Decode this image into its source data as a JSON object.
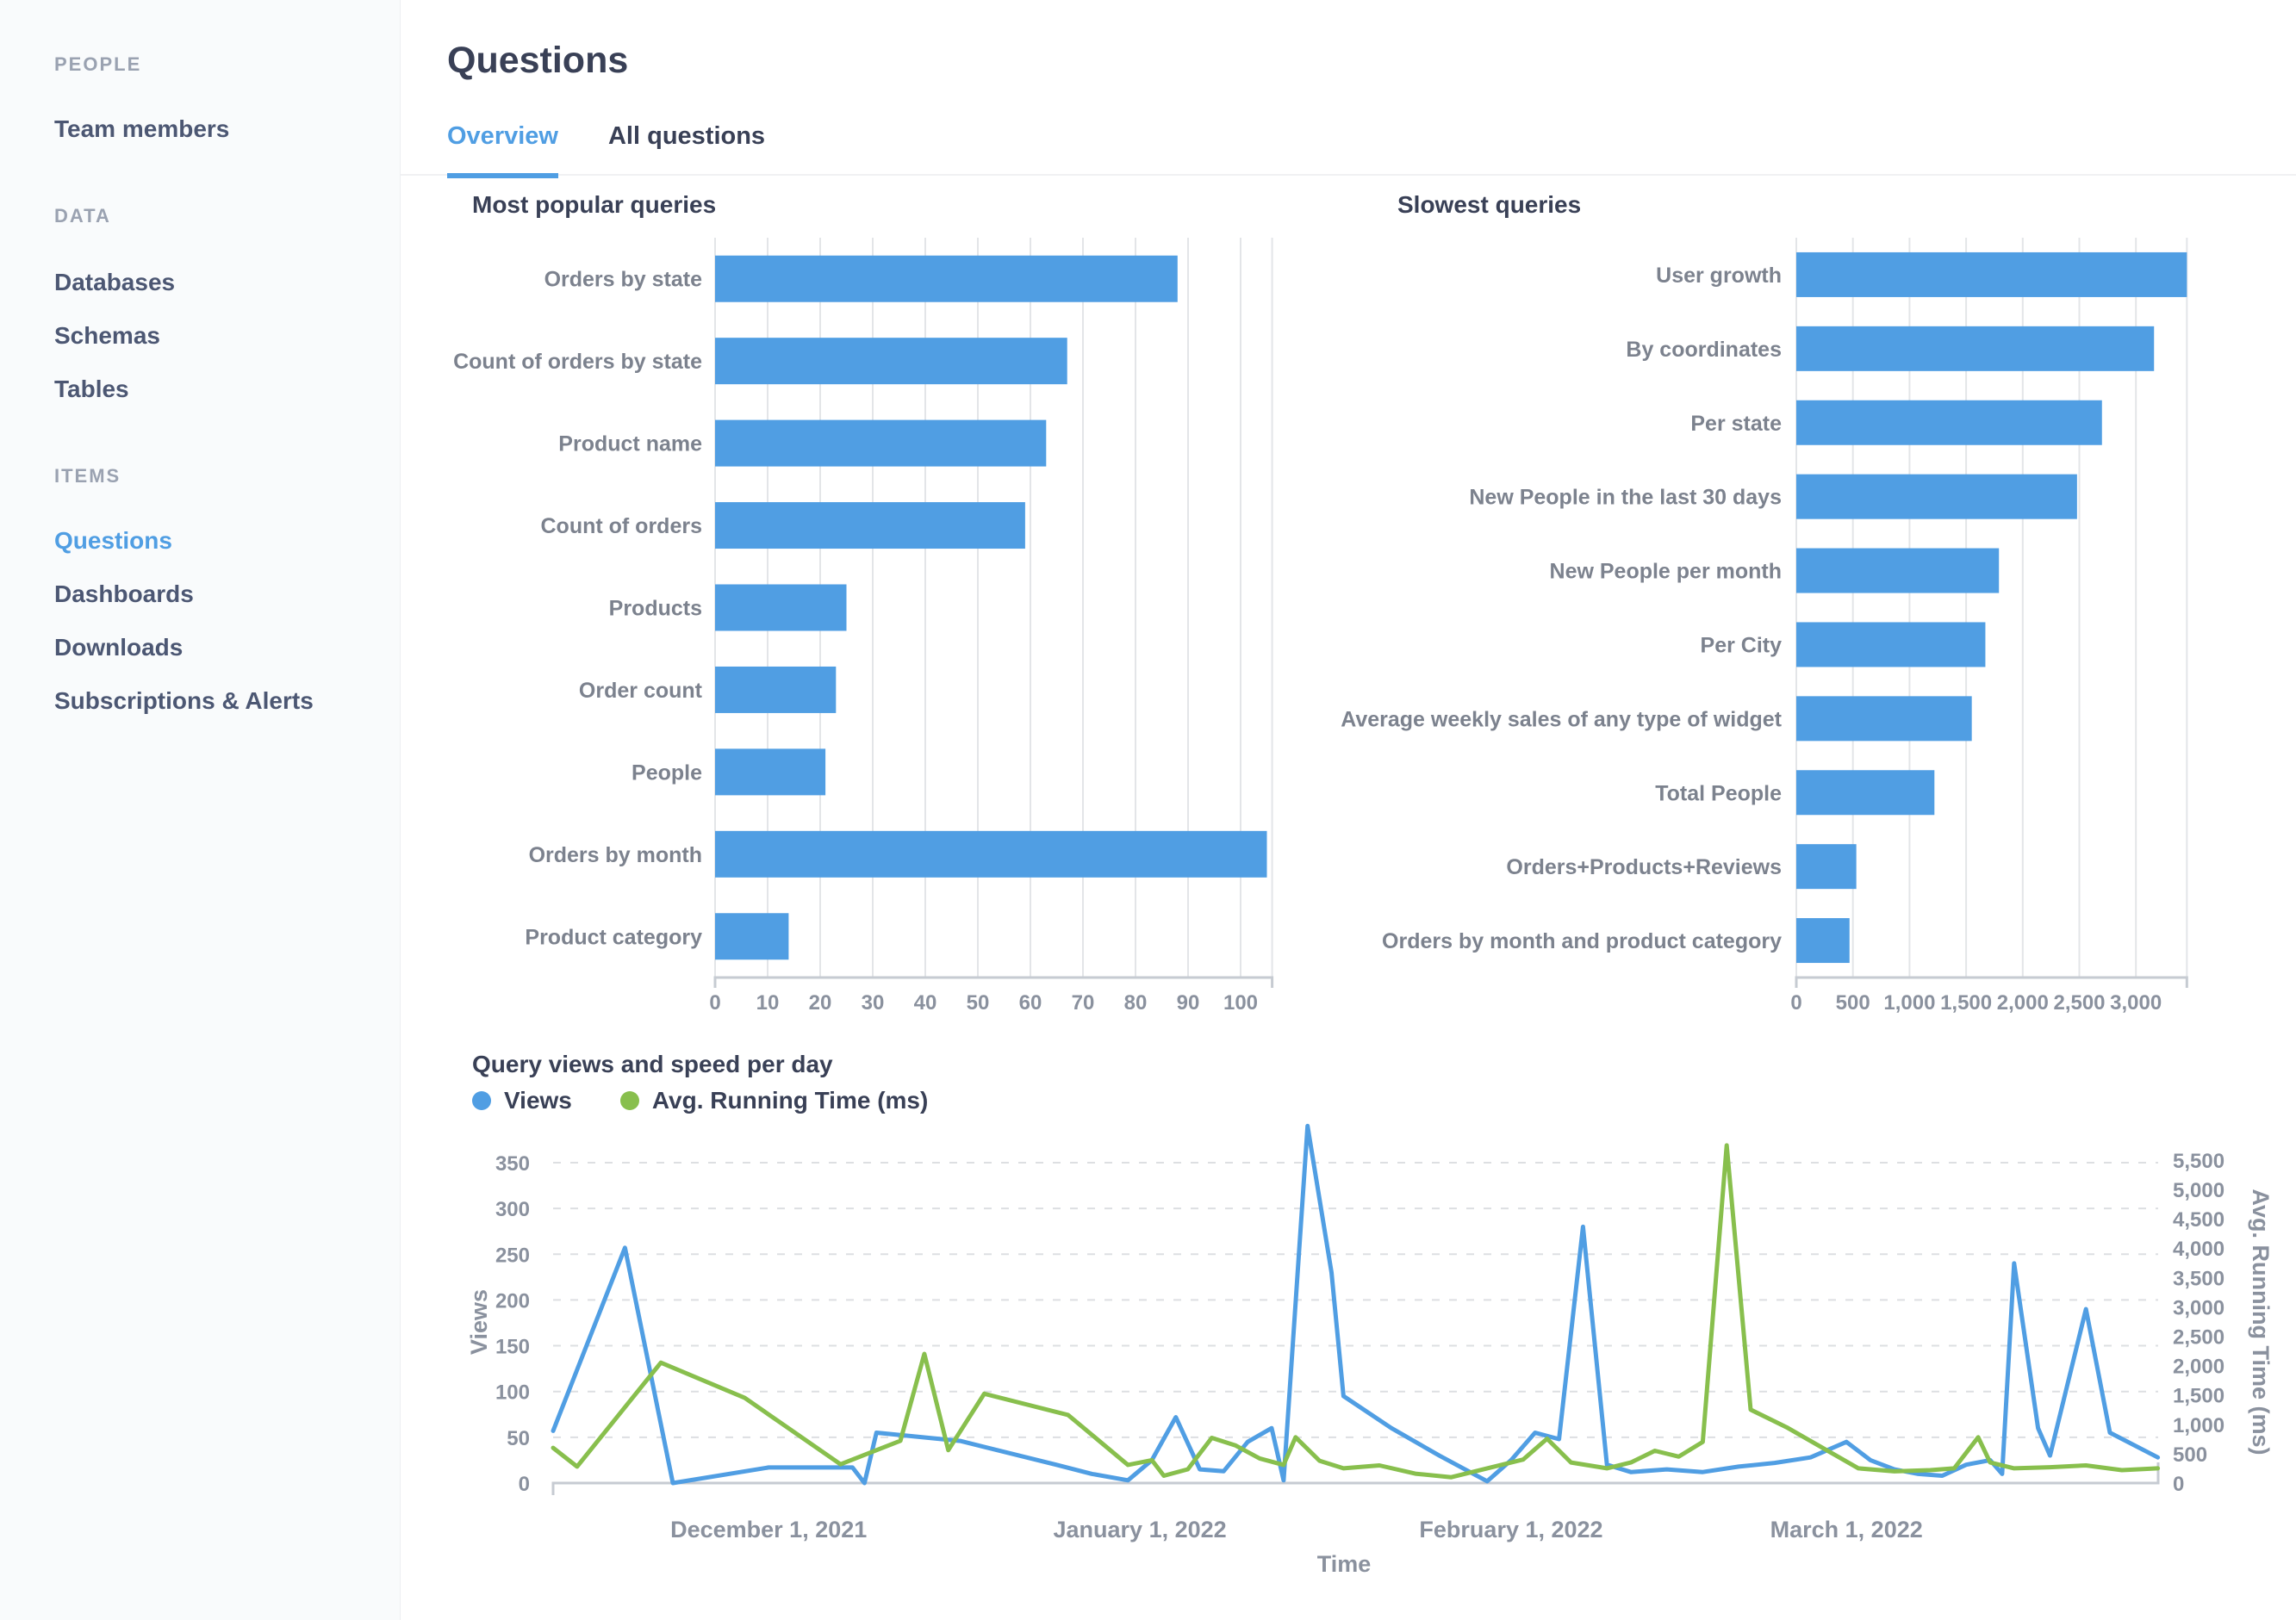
{
  "sidebar": {
    "sections": [
      {
        "header": "PEOPLE",
        "items": [
          {
            "label": "Team members",
            "active": false
          }
        ]
      },
      {
        "header": "DATA",
        "items": [
          {
            "label": "Databases",
            "active": false
          },
          {
            "label": "Schemas",
            "active": false
          },
          {
            "label": "Tables",
            "active": false
          }
        ]
      },
      {
        "header": "ITEMS",
        "items": [
          {
            "label": "Questions",
            "active": true
          },
          {
            "label": "Dashboards",
            "active": false
          },
          {
            "label": "Downloads",
            "active": false
          },
          {
            "label": "Subscriptions & Alerts",
            "active": false
          }
        ]
      }
    ]
  },
  "header": {
    "title": "Questions",
    "tabs": [
      {
        "label": "Overview",
        "active": true
      },
      {
        "label": "All questions",
        "active": false
      }
    ]
  },
  "colors": {
    "brand_blue": "#509EE3",
    "bar_fill": "#509EE3",
    "series_blue": "#509EE3",
    "series_green": "#88BF4D"
  },
  "chart_data": [
    {
      "id": "most-popular",
      "type": "bar",
      "orientation": "horizontal",
      "title": "Most popular queries",
      "categories": [
        "Orders by state",
        "Count of orders by state",
        "Product name",
        "Count of orders",
        "Products",
        "Order count",
        "People",
        "Orders by month",
        "Product category"
      ],
      "values": [
        88,
        67,
        63,
        59,
        25,
        23,
        21,
        105,
        14
      ],
      "x_ticks": [
        0,
        10,
        20,
        30,
        40,
        50,
        60,
        70,
        80,
        90,
        100
      ],
      "x_tick_labels": [
        "0",
        "10",
        "20",
        "30",
        "40",
        "50",
        "60",
        "70",
        "80",
        "90",
        "100"
      ],
      "xlim": [
        0,
        106
      ],
      "grid": true,
      "legend": "none"
    },
    {
      "id": "slowest-queries",
      "type": "bar",
      "orientation": "horizontal",
      "title": "Slowest queries",
      "categories": [
        "User growth",
        "By coordinates",
        "Per state",
        "New People in the last 30 days",
        "New People per month",
        "Per City",
        "Average weekly sales of any type of widget",
        "Total People",
        "Orders+Products+Reviews",
        "Orders by month and product category"
      ],
      "values": [
        3450,
        3160,
        2700,
        2480,
        1790,
        1670,
        1550,
        1220,
        530,
        470
      ],
      "x_ticks": [
        0,
        500,
        1000,
        1500,
        2000,
        2500,
        3000
      ],
      "x_tick_labels": [
        "0",
        "500",
        "1,000",
        "1,500",
        "2,000",
        "2,500",
        "3,000"
      ],
      "xlim": [
        0,
        3450
      ],
      "grid": true,
      "legend": "none"
    },
    {
      "id": "views-speed",
      "type": "line",
      "title": "Query views and speed per day",
      "xlabel": "Time",
      "x_tick_labels": [
        "December 1, 2021",
        "January 1, 2022",
        "February 1, 2022",
        "March 1, 2022"
      ],
      "x_tick_days": [
        18,
        49,
        80,
        108
      ],
      "x_domain_days": [
        0,
        134
      ],
      "left_axis": {
        "label": "Views",
        "ticks": [
          0,
          50,
          100,
          150,
          200,
          250,
          300,
          350
        ]
      },
      "right_axis": {
        "label": "Avg. Running Time (ms)",
        "ticks": [
          0,
          500,
          1000,
          1500,
          2000,
          2500,
          3000,
          3500,
          4000,
          4500,
          5000,
          5500
        ],
        "tick_labels": [
          "0",
          "500",
          "1,000",
          "1,500",
          "2,000",
          "2,500",
          "3,000",
          "3,500",
          "4,000",
          "4,500",
          "5,000",
          "5,500"
        ]
      },
      "grid": "dashed-horizontal",
      "legend_position": "top-left",
      "series": [
        {
          "name": "Views",
          "color": "#509EE3",
          "axis": "left",
          "points": [
            [
              0,
              57
            ],
            [
              6,
              257
            ],
            [
              10,
              0
            ],
            [
              18,
              17
            ],
            [
              25,
              17
            ],
            [
              26,
              0
            ],
            [
              27,
              55
            ],
            [
              34,
              46
            ],
            [
              42,
              20
            ],
            [
              45,
              10
            ],
            [
              48,
              3
            ],
            [
              50,
              25
            ],
            [
              52,
              72
            ],
            [
              54,
              15
            ],
            [
              56,
              13
            ],
            [
              58,
              45
            ],
            [
              60,
              60
            ],
            [
              61,
              3
            ],
            [
              63,
              390
            ],
            [
              65,
              230
            ],
            [
              66,
              95
            ],
            [
              70,
              60
            ],
            [
              74,
              30
            ],
            [
              78,
              2
            ],
            [
              80,
              25
            ],
            [
              82,
              55
            ],
            [
              84,
              48
            ],
            [
              86,
              280
            ],
            [
              88,
              20
            ],
            [
              90,
              12
            ],
            [
              93,
              15
            ],
            [
              96,
              12
            ],
            [
              99,
              18
            ],
            [
              102,
              22
            ],
            [
              105,
              28
            ],
            [
              108,
              45
            ],
            [
              110,
              25
            ],
            [
              112,
              15
            ],
            [
              114,
              10
            ],
            [
              116,
              8
            ],
            [
              118,
              20
            ],
            [
              120,
              25
            ],
            [
              121,
              10
            ],
            [
              122,
              240
            ],
            [
              124,
              60
            ],
            [
              125,
              30
            ],
            [
              128,
              190
            ],
            [
              130,
              55
            ],
            [
              134,
              28
            ]
          ]
        },
        {
          "name": "Avg. Running Time (ms)",
          "color": "#88BF4D",
          "axis": "right",
          "points": [
            [
              0,
              600
            ],
            [
              2,
              280
            ],
            [
              9,
              2050
            ],
            [
              16,
              1450
            ],
            [
              24,
              320
            ],
            [
              29,
              720
            ],
            [
              31,
              2200
            ],
            [
              33,
              560
            ],
            [
              36,
              1520
            ],
            [
              43,
              1160
            ],
            [
              48,
              310
            ],
            [
              50,
              390
            ],
            [
              51,
              125
            ],
            [
              53,
              235
            ],
            [
              55,
              770
            ],
            [
              57,
              640
            ],
            [
              59,
              420
            ],
            [
              61,
              310
            ],
            [
              62,
              780
            ],
            [
              64,
              380
            ],
            [
              66,
              250
            ],
            [
              69,
              300
            ],
            [
              72,
              160
            ],
            [
              75,
              100
            ],
            [
              78,
              250
            ],
            [
              81,
              400
            ],
            [
              83,
              755
            ],
            [
              85,
              350
            ],
            [
              88,
              250
            ],
            [
              90,
              350
            ],
            [
              92,
              550
            ],
            [
              94,
              450
            ],
            [
              96,
              700
            ],
            [
              98,
              5750
            ],
            [
              100,
              1250
            ],
            [
              103,
              950
            ],
            [
              106,
              600
            ],
            [
              109,
              250
            ],
            [
              112,
              200
            ],
            [
              115,
              220
            ],
            [
              117,
              250
            ],
            [
              119,
              780
            ],
            [
              120,
              350
            ],
            [
              122,
              250
            ],
            [
              125,
              270
            ],
            [
              128,
              300
            ],
            [
              131,
              220
            ],
            [
              134,
              250
            ]
          ]
        }
      ]
    }
  ]
}
